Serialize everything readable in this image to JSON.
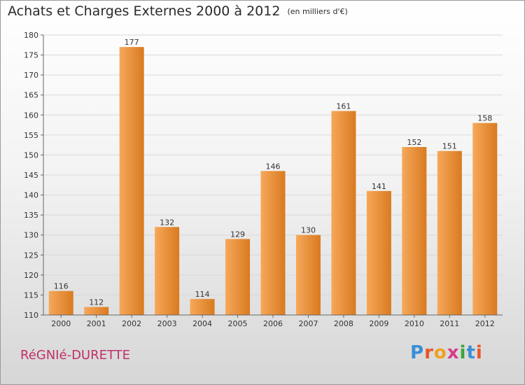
{
  "chart_data": {
    "type": "bar",
    "title": "Achats et Charges Externes 2000 à 2012",
    "unit_note": "(en milliers d'€)",
    "categories": [
      "2000",
      "2001",
      "2002",
      "2003",
      "2004",
      "2005",
      "2006",
      "2007",
      "2008",
      "2009",
      "2010",
      "2011",
      "2012"
    ],
    "values": [
      116,
      112,
      177,
      132,
      114,
      129,
      146,
      130,
      161,
      141,
      152,
      151,
      158
    ],
    "ylim": [
      110,
      180
    ],
    "yticks": [
      110,
      115,
      120,
      125,
      130,
      135,
      140,
      145,
      150,
      155,
      160,
      165,
      170,
      175,
      180
    ],
    "grid": true,
    "colors": {
      "bar_light": "#f6a85a",
      "bar_dark": "#d97a20",
      "grid": "#d9d9d9",
      "axis": "#666666"
    }
  },
  "commune": "RéGNIé-DURETTE",
  "logo": {
    "letters": [
      "P",
      "r",
      "o",
      "x",
      "i",
      "t",
      "i"
    ],
    "colors": [
      "#3a8fd6",
      "#e8572a",
      "#f0a020",
      "#d63a8a",
      "#3aa63a",
      "#3a8fd6",
      "#e8572a"
    ]
  }
}
